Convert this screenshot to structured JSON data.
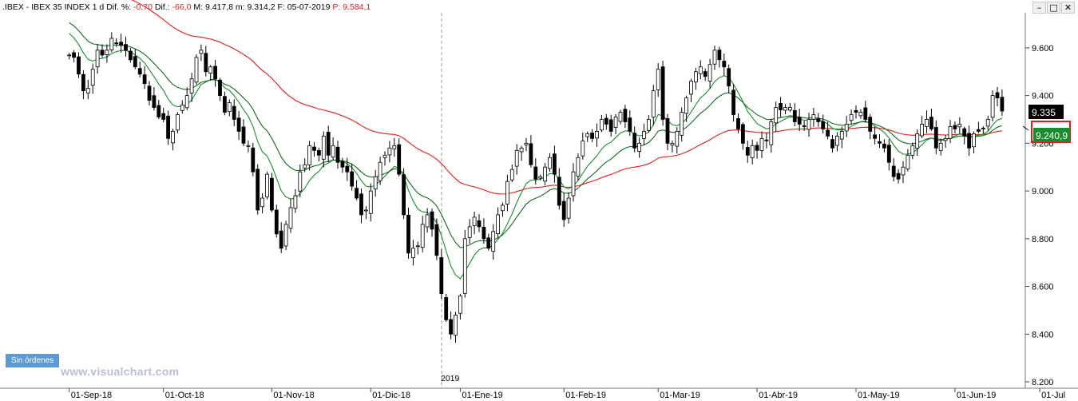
{
  "header": {
    "symbol": ".IBEX",
    "name": "IBEX 35 INDEX",
    "period": "1 d",
    "dif_pct_label": "Dif. %:",
    "dif_pct_value": "-0,70",
    "dif_label": "Dif.:",
    "dif_value": "-66,0",
    "max_label": "M:",
    "max_value": "9.417,8",
    "min_label": "m:",
    "min_value": "9.314,2",
    "date_label": "F:",
    "date_value": "05-07-2019",
    "price_label": "P:",
    "price_value": "9.584,1"
  },
  "window_buttons": [
    "–",
    "□",
    "✕"
  ],
  "badges": {
    "last_price": "9.335",
    "ma_value": "9.240,9"
  },
  "order_button": "Sin órdenes",
  "watermark": "www.visualchart.com",
  "year_label": "2019",
  "colors": {
    "bull_fill": "#ffffff",
    "bear_fill": "#000000",
    "ma_long": "#e8191a",
    "ma_short": "#1a8c2f",
    "ma_mid": "#126a1e",
    "badge_dark": "#000000",
    "badge_green": "#1a8c2f"
  },
  "chart_data": {
    "type": "candlestick",
    "title": ".IBEX - IBEX 35 INDEX",
    "ylim": [
      8200,
      9700
    ],
    "y_ticks": [
      "8.200",
      "8.400",
      "8.600",
      "8.800",
      "9.000",
      "9.200",
      "9.400",
      "9.600"
    ],
    "y_tick_values": [
      8200,
      8400,
      8600,
      8800,
      9000,
      9200,
      9400,
      9600
    ],
    "x_ticks": [
      "01-Sep-18",
      "01-Oct-18",
      "01-Nov-18",
      "01-Dic-18",
      "01-Ene-19",
      "01-Feb-19",
      "01-Mar-19",
      "01-Abr-19",
      "01-May-19",
      "01-Jun-19",
      "01-Jul"
    ],
    "x_tick_index": [
      0,
      20,
      43,
      64,
      83,
      105,
      125,
      146,
      167,
      188,
      206
    ],
    "first_index_offset": -13,
    "grid": false,
    "closes": [
      9570,
      9560,
      9490,
      9420,
      9430,
      9510,
      9590,
      9570,
      9590,
      9640,
      9620,
      9610,
      9590,
      9550,
      9520,
      9490,
      9450,
      9380,
      9350,
      9310,
      9300,
      9220,
      9250,
      9320,
      9360,
      9400,
      9470,
      9560,
      9590,
      9500,
      9520,
      9470,
      9400,
      9330,
      9370,
      9300,
      9250,
      9200,
      9190,
      9080,
      8920,
      8970,
      9070,
      8920,
      8820,
      8760,
      8860,
      8930,
      8980,
      9080,
      9110,
      9190,
      9170,
      9150,
      9230,
      9150,
      9190,
      9120,
      9100,
      9080,
      9020,
      8970,
      8900,
      8920,
      9000,
      9060,
      9120,
      9150,
      9180,
      9190,
      9070,
      8900,
      8740,
      8760,
      8770,
      8860,
      8900,
      8840,
      8730,
      8570,
      8460,
      8400,
      8480,
      8560,
      8800,
      8850,
      8890,
      8850,
      8800,
      8760,
      8830,
      8900,
      8940,
      9040,
      9090,
      9170,
      9180,
      9200,
      9110,
      9050,
      9060,
      9100,
      9140,
      9070,
      8940,
      8880,
      8970,
      9080,
      9140,
      9210,
      9240,
      9220,
      9250,
      9300,
      9280,
      9250,
      9310,
      9330,
      9290,
      9250,
      9180,
      9200,
      9250,
      9300,
      9420,
      9510,
      9300,
      9200,
      9200,
      9250,
      9330,
      9390,
      9460,
      9500,
      9520,
      9480,
      9530,
      9590,
      9550,
      9520,
      9440,
      9320,
      9260,
      9200,
      9150,
      9190,
      9170,
      9220,
      9210,
      9290,
      9350,
      9340,
      9350,
      9350,
      9290,
      9280,
      9270,
      9300,
      9320,
      9290,
      9260,
      9230,
      9180,
      9230,
      9250,
      9280,
      9320,
      9330,
      9330,
      9300,
      9250,
      9220,
      9200,
      9180,
      9120,
      9060,
      9050,
      9100,
      9150,
      9190,
      9240,
      9280,
      9300,
      9260,
      9180,
      9200,
      9220,
      9270,
      9260,
      9280,
      9230,
      9180,
      9240,
      9250,
      9260,
      9300,
      9400,
      9390,
      9335
    ]
  }
}
